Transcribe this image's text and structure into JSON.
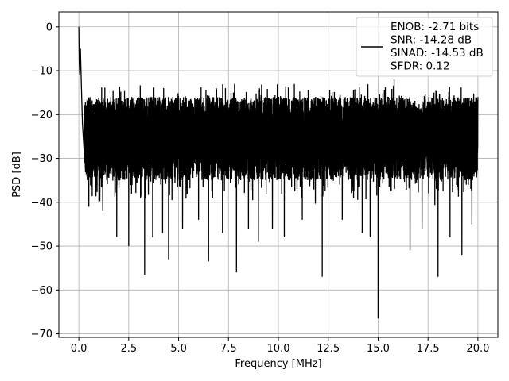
{
  "chart_data": {
    "type": "line",
    "title": "",
    "xlabel": "Frequency [MHz]",
    "ylabel": "PSD [dB]",
    "xlim": [
      -1.0,
      21.0
    ],
    "ylim": [
      -70.8,
      3.4
    ],
    "xticks": [
      0.0,
      2.5,
      5.0,
      7.5,
      10.0,
      12.5,
      15.0,
      17.5,
      20.0
    ],
    "xtick_labels": [
      "0.0",
      "2.5",
      "5.0",
      "7.5",
      "10.0",
      "12.5",
      "15.0",
      "17.5",
      "20.0"
    ],
    "yticks": [
      0,
      -10,
      -20,
      -30,
      -40,
      -50,
      -60,
      -70
    ],
    "ytick_labels": [
      "0",
      "−10",
      "−20",
      "−30",
      "−40",
      "−50",
      "−60",
      "−70"
    ],
    "grid": true,
    "legend_position": "top-right",
    "legend_lines": [
      "ENOB: -2.71 bits",
      "SNR: -14.28 dB",
      "SINAD: -14.53 dB",
      "SFDR: 0.12"
    ],
    "series": [
      {
        "color": "#000000",
        "x_range": [
          0.0,
          20.0
        ],
        "noise_band": [
          -35,
          -16
        ],
        "dc_peak": {
          "x": 0.0,
          "y": 0.0
        },
        "low_freq_values": [
          {
            "x": 0.02,
            "y": -8
          },
          {
            "x": 0.05,
            "y": -11
          },
          {
            "x": 0.08,
            "y": -5
          },
          {
            "x": 0.12,
            "y": -12
          },
          {
            "x": 0.18,
            "y": -22
          },
          {
            "x": 0.3,
            "y": -31
          }
        ],
        "peaks": [
          {
            "x": 7.8,
            "y": -13
          },
          {
            "x": 15.8,
            "y": -12
          },
          {
            "x": 17.8,
            "y": -15
          },
          {
            "x": 20.0,
            "y": -16
          }
        ],
        "troughs": [
          {
            "x": 0.5,
            "y": -41
          },
          {
            "x": 1.2,
            "y": -42
          },
          {
            "x": 1.9,
            "y": -48
          },
          {
            "x": 2.5,
            "y": -50
          },
          {
            "x": 3.3,
            "y": -56.5
          },
          {
            "x": 3.7,
            "y": -48
          },
          {
            "x": 4.2,
            "y": -47
          },
          {
            "x": 4.5,
            "y": -53
          },
          {
            "x": 5.2,
            "y": -46
          },
          {
            "x": 6.0,
            "y": -44
          },
          {
            "x": 6.5,
            "y": -53.5
          },
          {
            "x": 7.2,
            "y": -47
          },
          {
            "x": 7.9,
            "y": -56
          },
          {
            "x": 8.5,
            "y": -46
          },
          {
            "x": 9.0,
            "y": -49
          },
          {
            "x": 9.7,
            "y": -46
          },
          {
            "x": 10.3,
            "y": -48
          },
          {
            "x": 11.2,
            "y": -44
          },
          {
            "x": 12.2,
            "y": -57
          },
          {
            "x": 13.2,
            "y": -44
          },
          {
            "x": 14.2,
            "y": -47
          },
          {
            "x": 14.6,
            "y": -48
          },
          {
            "x": 15.0,
            "y": -66.5
          },
          {
            "x": 15.8,
            "y": -49
          },
          {
            "x": 16.6,
            "y": -51
          },
          {
            "x": 17.2,
            "y": -46
          },
          {
            "x": 18.0,
            "y": -57
          },
          {
            "x": 18.6,
            "y": -48
          },
          {
            "x": 19.2,
            "y": -52
          },
          {
            "x": 19.7,
            "y": -45
          }
        ]
      }
    ]
  }
}
